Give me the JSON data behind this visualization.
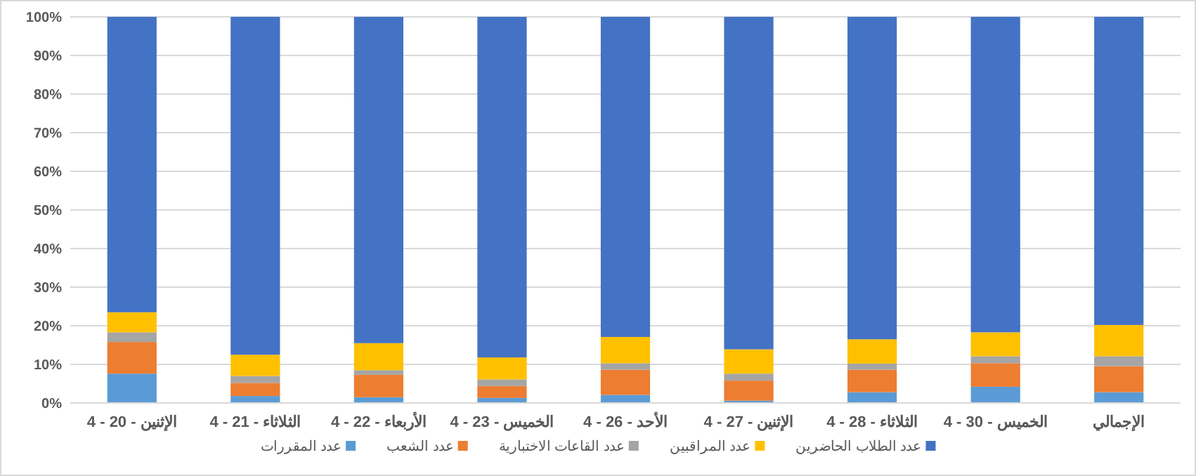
{
  "chart_data": {
    "type": "bar",
    "stacked": true,
    "categories": [
      "الإثنين - 20 - 4",
      "الثلاثاء - 21 - 4",
      "الأربعاء - 22 - 4",
      "الخميس - 23 - 4",
      "الأحد - 26 - 4",
      "الإثنين - 27 - 4",
      "الثلاثاء - 28 - 4",
      "الخميس - 30 - 4",
      "الإجمالي"
    ],
    "series": [
      {
        "name": "عدد المقررات",
        "color": "#5b9bd5",
        "values": [
          7.6,
          1.8,
          1.5,
          1.3,
          2.1,
          0.6,
          2.8,
          4.2,
          2.8
        ]
      },
      {
        "name": "عدد الشعب",
        "color": "#ed7d31",
        "values": [
          8.2,
          3.4,
          5.8,
          3.1,
          6.5,
          5.2,
          5.8,
          6.1,
          6.7
        ]
      },
      {
        "name": "عدد القاعات الاختبارية",
        "color": "#a5a5a5",
        "values": [
          2.5,
          1.8,
          1.2,
          1.7,
          1.7,
          1.8,
          1.6,
          1.8,
          2.6
        ]
      },
      {
        "name": "عدد المراقبين",
        "color": "#ffc000",
        "values": [
          5.2,
          5.5,
          7.0,
          5.7,
          6.8,
          6.3,
          6.3,
          6.2,
          8.1
        ]
      },
      {
        "name": "عدد الطلاب الحاضرين",
        "color": "#4472c4",
        "values": [
          76.5,
          87.5,
          84.5,
          88.2,
          82.9,
          86.1,
          83.5,
          81.7,
          79.8
        ]
      }
    ],
    "ylim": [
      0,
      100
    ],
    "yticks": [
      {
        "value": 0,
        "label": "0%"
      },
      {
        "value": 10,
        "label": "10%"
      },
      {
        "value": 20,
        "label": "20%"
      },
      {
        "value": 30,
        "label": "30%"
      },
      {
        "value": 40,
        "label": "40%"
      },
      {
        "value": 50,
        "label": "50%"
      },
      {
        "value": 60,
        "label": "60%"
      },
      {
        "value": 70,
        "label": "70%"
      },
      {
        "value": 80,
        "label": "80%"
      },
      {
        "value": 90,
        "label": "90%"
      },
      {
        "value": 100,
        "label": "100%"
      }
    ],
    "grid": "y",
    "legend": "bottom"
  }
}
